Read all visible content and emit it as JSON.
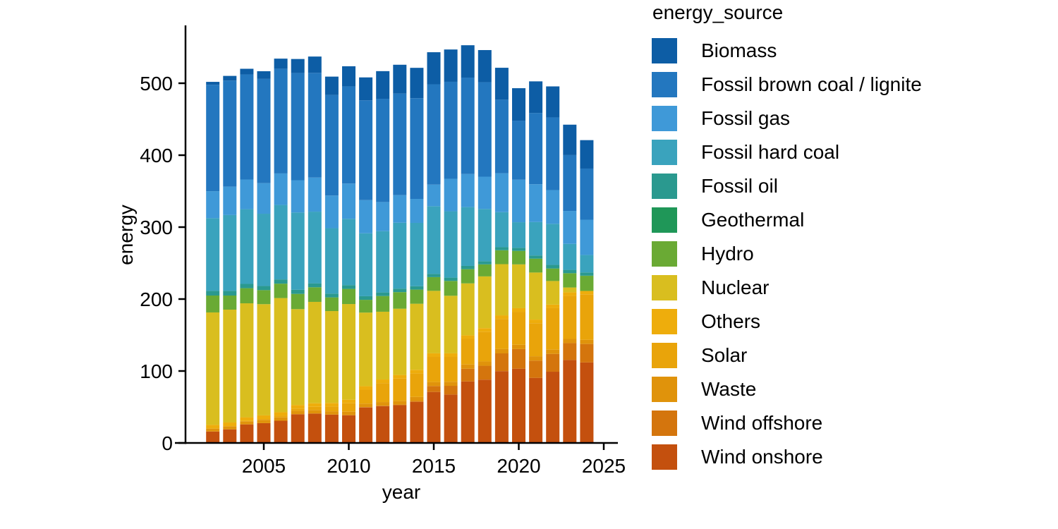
{
  "chart_data": {
    "type": "bar",
    "stacked": true,
    "legend_title": "energy_source",
    "xlabel": "year",
    "ylabel": "energy",
    "categories": [
      2002,
      2003,
      2004,
      2005,
      2006,
      2007,
      2008,
      2009,
      2010,
      2011,
      2012,
      2013,
      2014,
      2015,
      2016,
      2017,
      2018,
      2019,
      2020,
      2021,
      2022,
      2023,
      2024
    ],
    "x_tick_years": [
      2005,
      2010,
      2015,
      2020,
      2025
    ],
    "x_tick_labels": [
      "2005",
      "2010",
      "2015",
      "2020",
      "2025"
    ],
    "y_ticks": [
      0,
      100,
      200,
      300,
      400,
      500
    ],
    "ylim": [
      0,
      560
    ],
    "xlim": [
      2000.5,
      2025.8
    ],
    "grid": false,
    "legend_position": "right",
    "axis_color": "#000000",
    "text_color": "#000000",
    "background_color": "#ffffff",
    "stack_order_bottom_to_top": [
      "Wind onshore",
      "Wind offshore",
      "Waste",
      "Solar",
      "Others",
      "Nuclear",
      "Hydro",
      "Geothermal",
      "Fossil oil",
      "Fossil hard coal",
      "Fossil gas",
      "Fossil brown coal / lignite",
      "Biomass"
    ],
    "series": [
      {
        "name": "Biomass",
        "color": "#0d5da5",
        "values": [
          4.0,
          6.5,
          7.9,
          10.7,
          14.0,
          19.4,
          22.7,
          25.5,
          28.1,
          31.9,
          38.4,
          40.1,
          42.2,
          44.6,
          44.9,
          45.0,
          44.7,
          44.4,
          45.1,
          43.9,
          43.1,
          42.3,
          39.5
        ]
      },
      {
        "name": "Fossil brown coal / lignite",
        "color": "#2377bf",
        "values": [
          148.0,
          147.5,
          146.0,
          144.9,
          145.6,
          149.1,
          145.5,
          139.8,
          134.9,
          138.7,
          143.5,
          141.2,
          140.0,
          139.4,
          134.8,
          134.0,
          131.3,
          102.2,
          82.1,
          99.1,
          101.0,
          77.6,
          71.1
        ]
      },
      {
        "name": "Fossil gas",
        "color": "#3f99d8",
        "values": [
          37.5,
          39.4,
          41.3,
          42.5,
          43.8,
          44.9,
          47.4,
          45.4,
          49.1,
          46.1,
          40.5,
          38.3,
          33.3,
          30.0,
          45.2,
          46.0,
          44.8,
          54.1,
          59.1,
          52.6,
          46.9,
          45.8,
          49.1
        ]
      },
      {
        "name": "Fossil hard coal",
        "color": "#3aa3bd",
        "values": [
          101.0,
          105.4,
          103.8,
          100.4,
          103.5,
          107.4,
          99.6,
          90.9,
          92.1,
          87.4,
          85.2,
          91.6,
          88.0,
          94.0,
          92.2,
          81.7,
          72.7,
          48.7,
          35.6,
          46.4,
          57.1,
          36.1,
          24.2
        ]
      },
      {
        "name": "Fossil oil",
        "color": "#2a998f",
        "values": [
          6.5,
          6.5,
          6.0,
          5.8,
          5.9,
          5.7,
          5.5,
          5.3,
          5.2,
          5.0,
          4.9,
          4.8,
          4.7,
          4.6,
          4.5,
          4.4,
          4.3,
          4.2,
          4.1,
          4.3,
          4.9,
          4.6,
          4.5
        ]
      },
      {
        "name": "Geothermal",
        "color": "#1f9758",
        "values": [
          0,
          0,
          0,
          0,
          0,
          0,
          0,
          0,
          0.1,
          0.1,
          0.1,
          0.1,
          0.1,
          0.1,
          0.2,
          0.2,
          0.2,
          0.2,
          0.2,
          0.2,
          0.2,
          0.2,
          0.2
        ]
      },
      {
        "name": "Hydro",
        "color": "#6aaa34",
        "values": [
          23.5,
          19.6,
          21.0,
          19.5,
          20.0,
          21.2,
          20.3,
          19.0,
          21.0,
          17.7,
          21.8,
          23.0,
          19.6,
          19.0,
          20.5,
          19.7,
          16.6,
          19.2,
          18.7,
          19.2,
          17.3,
          19.7,
          21.0
        ]
      },
      {
        "name": "Nuclear",
        "color": "#d9be1f",
        "values": [
          156.3,
          156.9,
          158.4,
          154.6,
          158.7,
          133.2,
          140.9,
          127.7,
          133.0,
          102.2,
          94.2,
          92.1,
          91.8,
          86.8,
          80.0,
          72.2,
          71.9,
          71.1,
          60.9,
          65.4,
          32.8,
          6.7,
          0
        ]
      },
      {
        "name": "Others",
        "color": "#eead0c",
        "values": [
          5.0,
          5.0,
          5.0,
          5.0,
          5.0,
          5.0,
          5.0,
          5.0,
          5.0,
          5.0,
          5.0,
          5.0,
          5.0,
          5.0,
          5.0,
          5.0,
          5.0,
          5.0,
          5.0,
          5.0,
          5.0,
          4.9,
          4.7
        ]
      },
      {
        "name": "Solar",
        "color": "#e9a40a",
        "values": [
          0.2,
          0.3,
          0.6,
          1.3,
          2.2,
          3.1,
          4.4,
          6.6,
          11.7,
          19.3,
          26.4,
          31.0,
          32.8,
          34.9,
          34.5,
          35.5,
          41.3,
          41.9,
          45.8,
          46.0,
          57.6,
          59.9,
          63.3
        ]
      },
      {
        "name": "Waste",
        "color": "#e0930b",
        "values": [
          4.0,
          4.2,
          4.3,
          4.5,
          4.6,
          4.8,
          4.9,
          4.6,
          4.7,
          4.8,
          5.0,
          5.2,
          5.5,
          5.5,
          5.7,
          5.9,
          6.0,
          6.0,
          6.0,
          6.0,
          5.9,
          5.8,
          5.7
        ]
      },
      {
        "name": "Wind offshore",
        "color": "#d4750d",
        "values": [
          0,
          0,
          0,
          0,
          0,
          0,
          0,
          0,
          0.2,
          0.6,
          0.7,
          0.9,
          1.4,
          8.3,
          12.1,
          17.7,
          19.3,
          24.7,
          27.3,
          24.0,
          24.8,
          23.5,
          25.7
        ]
      },
      {
        "name": "Wind onshore",
        "color": "#c4500e",
        "values": [
          15.9,
          18.9,
          25.8,
          27.5,
          30.9,
          39.9,
          40.9,
          39.4,
          38.5,
          49.3,
          51.1,
          52.4,
          57.0,
          70.9,
          67.3,
          85.5,
          88.0,
          99.8,
          103.2,
          90.5,
          99.0,
          115.3,
          111.9
        ]
      }
    ]
  }
}
